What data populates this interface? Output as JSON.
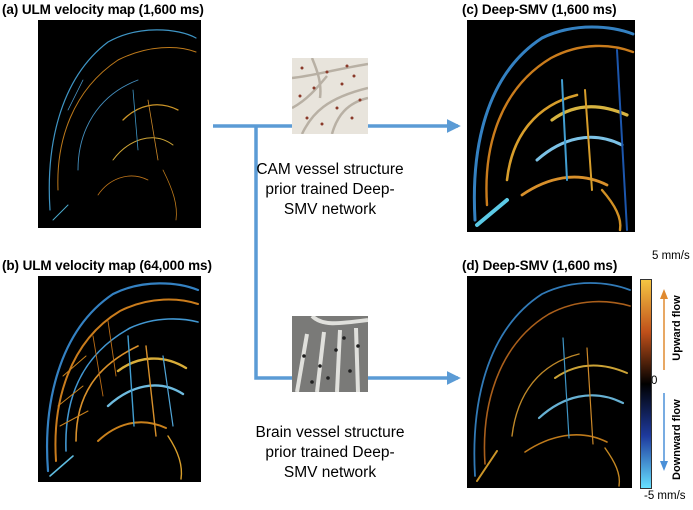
{
  "panels": {
    "a": {
      "title": "(a) ULM velocity map (1,600 ms)"
    },
    "b": {
      "title": "(b) ULM velocity map (64,000 ms)"
    },
    "c": {
      "title": "(c) Deep-SMV (1,600 ms)"
    },
    "d": {
      "title": "(d) Deep-SMV (1,600 ms)"
    }
  },
  "networks": {
    "cam": {
      "line1": "CAM vessel structure",
      "line2": "prior trained Deep-",
      "line3": "SMV network"
    },
    "brain": {
      "line1": "Brain vessel structure",
      "line2": "prior trained Deep-",
      "line3": "SMV network"
    }
  },
  "colorbar": {
    "max_label": "5 mm/s",
    "mid_label": "0",
    "min_label": "-5 mm/s",
    "upward_label": "Upward flow",
    "downward_label": "Downward flow",
    "colors": {
      "top": "#f5c542",
      "upper_mid": "#c0501a",
      "middle": "#000000",
      "lower_mid": "#1e3a9e",
      "bottom": "#66e0ff"
    }
  },
  "colors": {
    "arrow": "#5b9bd5",
    "orange_vessel": "#f0a030",
    "blue_vessel": "#5ab8f0"
  }
}
